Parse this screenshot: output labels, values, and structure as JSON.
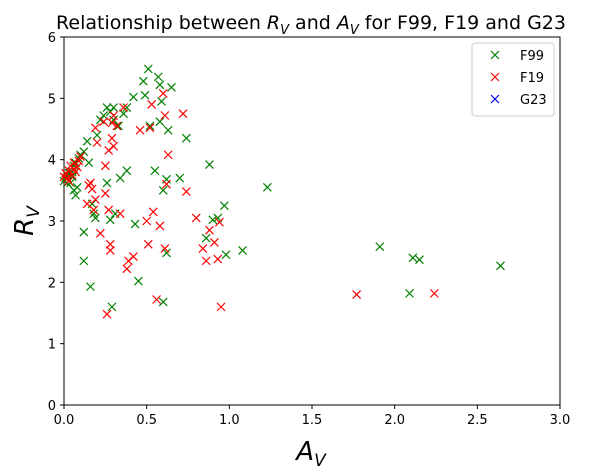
{
  "chart_data": {
    "type": "scatter",
    "title": {
      "prefix": "Relationship between ",
      "var1": "R",
      "var1_sub": "V",
      "middle": " and ",
      "var2": "A",
      "var2_sub": "V",
      "suffix": " for F99, F19 and G23"
    },
    "xlabel": {
      "main": "A",
      "sub": "V"
    },
    "ylabel": {
      "main": "R",
      "sub": "V"
    },
    "xlim": [
      0,
      3.0
    ],
    "ylim": [
      0,
      6
    ],
    "x_ticks": [
      "0.0",
      "0.5",
      "1.0",
      "1.5",
      "2.0",
      "2.5",
      "3.0"
    ],
    "y_ticks": [
      "0",
      "1",
      "2",
      "3",
      "4",
      "5",
      "6"
    ],
    "grid": false,
    "legend_position": "top-right",
    "marker": "x",
    "series": [
      {
        "name": "F99",
        "color": "#008000",
        "points": [
          [
            0.0,
            3.65
          ],
          [
            0.01,
            3.7
          ],
          [
            0.02,
            3.62
          ],
          [
            0.02,
            3.75
          ],
          [
            0.03,
            3.78
          ],
          [
            0.04,
            3.62
          ],
          [
            0.05,
            3.72
          ],
          [
            0.05,
            3.8
          ],
          [
            0.06,
            3.5
          ],
          [
            0.06,
            3.9
          ],
          [
            0.07,
            3.42
          ],
          [
            0.07,
            3.95
          ],
          [
            0.08,
            3.55
          ],
          [
            0.09,
            4.02
          ],
          [
            0.1,
            4.08
          ],
          [
            0.12,
            4.13
          ],
          [
            0.12,
            2.82
          ],
          [
            0.12,
            2.35
          ],
          [
            0.14,
            4.3
          ],
          [
            0.15,
            3.95
          ],
          [
            0.16,
            1.93
          ],
          [
            0.17,
            3.28
          ],
          [
            0.18,
            3.12
          ],
          [
            0.19,
            3.05
          ],
          [
            0.2,
            4.4
          ],
          [
            0.22,
            4.65
          ],
          [
            0.24,
            4.72
          ],
          [
            0.26,
            4.85
          ],
          [
            0.26,
            3.62
          ],
          [
            0.28,
            4.78
          ],
          [
            0.28,
            3.02
          ],
          [
            0.29,
            1.6
          ],
          [
            0.3,
            4.85
          ],
          [
            0.3,
            4.65
          ],
          [
            0.31,
            3.12
          ],
          [
            0.33,
            4.55
          ],
          [
            0.34,
            3.7
          ],
          [
            0.36,
            4.75
          ],
          [
            0.38,
            4.85
          ],
          [
            0.38,
            3.82
          ],
          [
            0.42,
            5.02
          ],
          [
            0.43,
            2.95
          ],
          [
            0.45,
            2.02
          ],
          [
            0.48,
            5.28
          ],
          [
            0.49,
            5.05
          ],
          [
            0.51,
            5.48
          ],
          [
            0.52,
            4.55
          ],
          [
            0.55,
            3.82
          ],
          [
            0.57,
            5.35
          ],
          [
            0.58,
            5.22
          ],
          [
            0.58,
            4.62
          ],
          [
            0.59,
            4.95
          ],
          [
            0.6,
            3.5
          ],
          [
            0.6,
            1.68
          ],
          [
            0.62,
            3.68
          ],
          [
            0.62,
            2.48
          ],
          [
            0.63,
            4.48
          ],
          [
            0.65,
            5.18
          ],
          [
            0.7,
            3.7
          ],
          [
            0.74,
            4.35
          ],
          [
            0.86,
            2.72
          ],
          [
            0.88,
            3.92
          ],
          [
            0.9,
            3.02
          ],
          [
            0.93,
            3.05
          ],
          [
            0.97,
            3.25
          ],
          [
            0.98,
            2.45
          ],
          [
            1.08,
            2.52
          ],
          [
            1.23,
            3.55
          ],
          [
            1.91,
            2.58
          ],
          [
            2.09,
            1.82
          ],
          [
            2.11,
            2.4
          ],
          [
            2.15,
            2.37
          ],
          [
            2.64,
            2.27
          ]
        ]
      },
      {
        "name": "F19",
        "color": "#ff0000",
        "points": [
          [
            0.0,
            3.72
          ],
          [
            0.01,
            3.78
          ],
          [
            0.02,
            3.7
          ],
          [
            0.03,
            3.82
          ],
          [
            0.03,
            3.65
          ],
          [
            0.04,
            3.9
          ],
          [
            0.05,
            3.75
          ],
          [
            0.06,
            3.85
          ],
          [
            0.06,
            3.95
          ],
          [
            0.07,
            3.8
          ],
          [
            0.08,
            3.88
          ],
          [
            0.09,
            3.98
          ],
          [
            0.1,
            4.05
          ],
          [
            0.14,
            3.28
          ],
          [
            0.15,
            3.58
          ],
          [
            0.16,
            3.62
          ],
          [
            0.17,
            3.52
          ],
          [
            0.18,
            3.18
          ],
          [
            0.19,
            4.52
          ],
          [
            0.19,
            3.35
          ],
          [
            0.2,
            4.28
          ],
          [
            0.22,
            2.8
          ],
          [
            0.24,
            4.62
          ],
          [
            0.25,
            3.45
          ],
          [
            0.25,
            3.9
          ],
          [
            0.26,
            1.48
          ],
          [
            0.27,
            4.15
          ],
          [
            0.27,
            3.18
          ],
          [
            0.28,
            2.62
          ],
          [
            0.28,
            2.52
          ],
          [
            0.29,
            4.35
          ],
          [
            0.29,
            4.6
          ],
          [
            0.3,
            4.22
          ],
          [
            0.3,
            4.72
          ],
          [
            0.32,
            4.55
          ],
          [
            0.34,
            3.12
          ],
          [
            0.36,
            4.85
          ],
          [
            0.38,
            2.22
          ],
          [
            0.39,
            2.35
          ],
          [
            0.42,
            2.42
          ],
          [
            0.46,
            4.48
          ],
          [
            0.5,
            3.0
          ],
          [
            0.51,
            2.62
          ],
          [
            0.52,
            4.52
          ],
          [
            0.53,
            4.9
          ],
          [
            0.54,
            3.15
          ],
          [
            0.56,
            1.72
          ],
          [
            0.58,
            2.92
          ],
          [
            0.6,
            5.08
          ],
          [
            0.61,
            4.72
          ],
          [
            0.61,
            2.55
          ],
          [
            0.62,
            3.6
          ],
          [
            0.63,
            4.08
          ],
          [
            0.72,
            4.75
          ],
          [
            0.74,
            3.48
          ],
          [
            0.8,
            3.05
          ],
          [
            0.84,
            2.55
          ],
          [
            0.86,
            2.35
          ],
          [
            0.88,
            2.85
          ],
          [
            0.91,
            2.65
          ],
          [
            0.93,
            2.38
          ],
          [
            0.94,
            2.98
          ],
          [
            0.95,
            1.6
          ],
          [
            1.77,
            1.8
          ],
          [
            2.24,
            1.82
          ]
        ]
      },
      {
        "name": "G23",
        "color": "#0000ff",
        "points": []
      }
    ]
  }
}
